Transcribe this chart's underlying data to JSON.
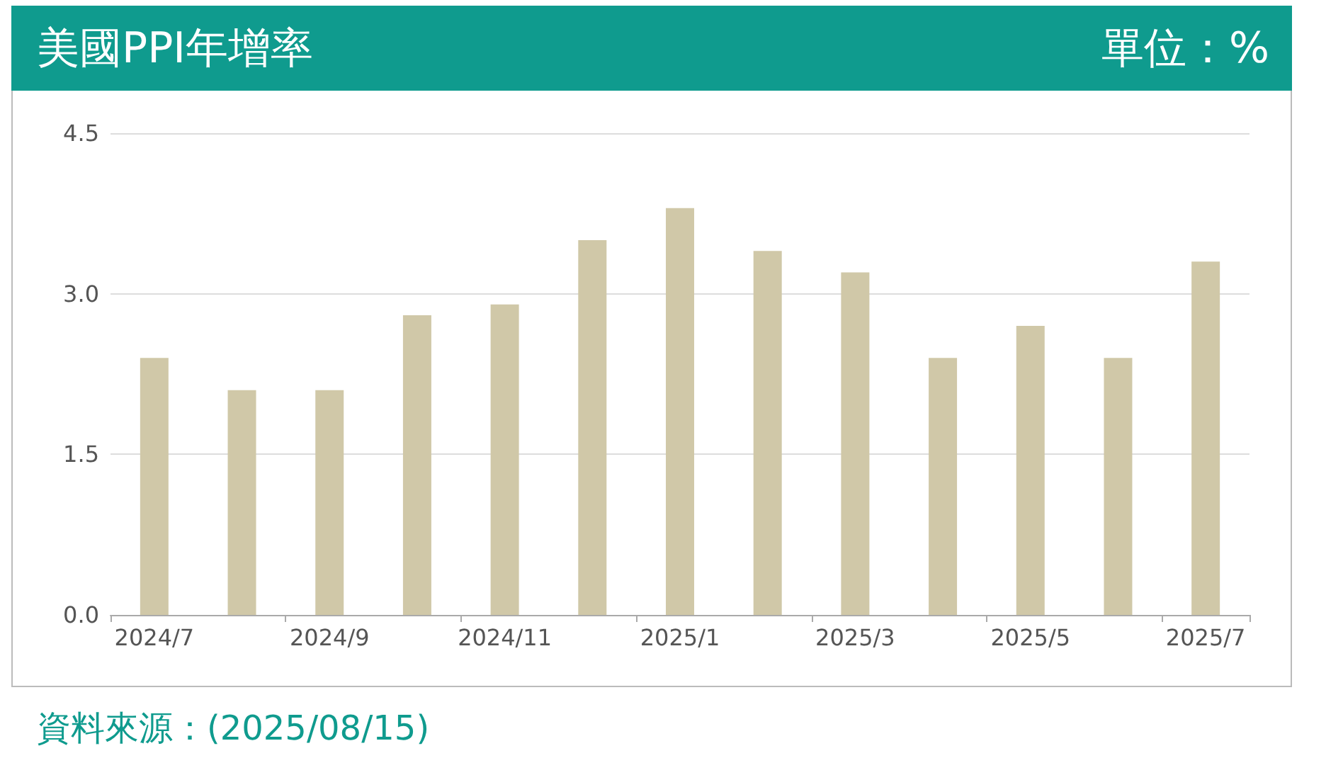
{
  "chart_data": {
    "type": "bar",
    "title": "美國PPI年增率",
    "subtitle": "單位：%",
    "categories": [
      "2024/7",
      null,
      "2024/9",
      null,
      "2024/11",
      null,
      "2025/1",
      null,
      "2025/3",
      null,
      "2025/5",
      null,
      "2025/7"
    ],
    "values": [
      2.4,
      2.1,
      2.1,
      2.8,
      2.9,
      3.5,
      3.8,
      3.4,
      3.2,
      2.4,
      2.7,
      2.4,
      3.3
    ],
    "color": "#d0c8a8",
    "ylim": [
      0,
      4.5
    ],
    "yticks": [
      {
        "value": 0,
        "label": "0.0"
      },
      {
        "value": 1.5,
        "label": "1.5"
      },
      {
        "value": 3,
        "label": "3.0"
      },
      {
        "value": 4.5,
        "label": "4.5"
      }
    ],
    "grid": "y",
    "annotations": [
      "資料來源：(2025/08/15)"
    ]
  }
}
